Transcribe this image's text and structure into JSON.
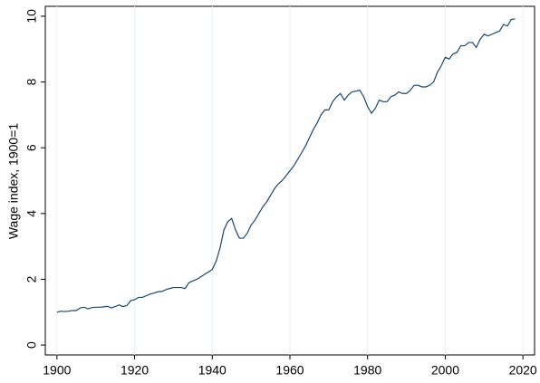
{
  "chart_data": {
    "type": "line",
    "y_label": "Wage index, 1900=1",
    "x": [
      1900,
      1901,
      1902,
      1903,
      1904,
      1905,
      1906,
      1907,
      1908,
      1909,
      1910,
      1911,
      1912,
      1913,
      1914,
      1915,
      1916,
      1917,
      1918,
      1919,
      1920,
      1921,
      1922,
      1923,
      1924,
      1925,
      1926,
      1927,
      1928,
      1929,
      1930,
      1931,
      1932,
      1933,
      1934,
      1935,
      1936,
      1937,
      1938,
      1939,
      1940,
      1941,
      1942,
      1943,
      1944,
      1945,
      1946,
      1947,
      1948,
      1949,
      1950,
      1951,
      1952,
      1953,
      1954,
      1955,
      1956,
      1957,
      1958,
      1959,
      1960,
      1961,
      1962,
      1963,
      1964,
      1965,
      1966,
      1967,
      1968,
      1969,
      1970,
      1971,
      1972,
      1973,
      1974,
      1975,
      1976,
      1977,
      1978,
      1979,
      1980,
      1981,
      1982,
      1983,
      1984,
      1985,
      1986,
      1987,
      1988,
      1989,
      1990,
      1991,
      1992,
      1993,
      1994,
      1995,
      1996,
      1997,
      1998,
      1999,
      2000,
      2001,
      2002,
      2003,
      2004,
      2005,
      2006,
      2007,
      2008,
      2009,
      2010,
      2011,
      2012,
      2013,
      2014,
      2015,
      2016,
      2017,
      2018
    ],
    "values": [
      1.0,
      1.03,
      1.02,
      1.03,
      1.05,
      1.05,
      1.13,
      1.15,
      1.1,
      1.14,
      1.15,
      1.15,
      1.16,
      1.18,
      1.13,
      1.17,
      1.22,
      1.17,
      1.2,
      1.35,
      1.38,
      1.45,
      1.45,
      1.5,
      1.55,
      1.58,
      1.62,
      1.63,
      1.68,
      1.72,
      1.75,
      1.75,
      1.75,
      1.72,
      1.9,
      1.95,
      2.0,
      2.07,
      2.15,
      2.22,
      2.3,
      2.55,
      2.95,
      3.5,
      3.75,
      3.85,
      3.5,
      3.25,
      3.25,
      3.4,
      3.65,
      3.8,
      4.0,
      4.2,
      4.35,
      4.55,
      4.75,
      4.9,
      5.0,
      5.15,
      5.3,
      5.45,
      5.65,
      5.85,
      6.05,
      6.3,
      6.55,
      6.75,
      7.0,
      7.15,
      7.15,
      7.4,
      7.55,
      7.65,
      7.45,
      7.6,
      7.7,
      7.72,
      7.75,
      7.55,
      7.25,
      7.05,
      7.2,
      7.45,
      7.4,
      7.4,
      7.55,
      7.6,
      7.7,
      7.65,
      7.65,
      7.75,
      7.9,
      7.9,
      7.85,
      7.85,
      7.9,
      8.0,
      8.3,
      8.5,
      8.75,
      8.7,
      8.85,
      8.9,
      9.1,
      9.1,
      9.2,
      9.2,
      9.05,
      9.3,
      9.45,
      9.4,
      9.45,
      9.5,
      9.55,
      9.75,
      9.7,
      9.9,
      9.92
    ],
    "color": "#1a476f",
    "xlim": [
      1897,
      2023
    ],
    "xticks": [
      1900,
      1920,
      1940,
      1960,
      1980,
      2000,
      2020
    ],
    "ylim": [
      -0.3,
      10.3
    ],
    "yticks": [
      0,
      2,
      4,
      6,
      8,
      10
    ],
    "x_grid": true
  }
}
